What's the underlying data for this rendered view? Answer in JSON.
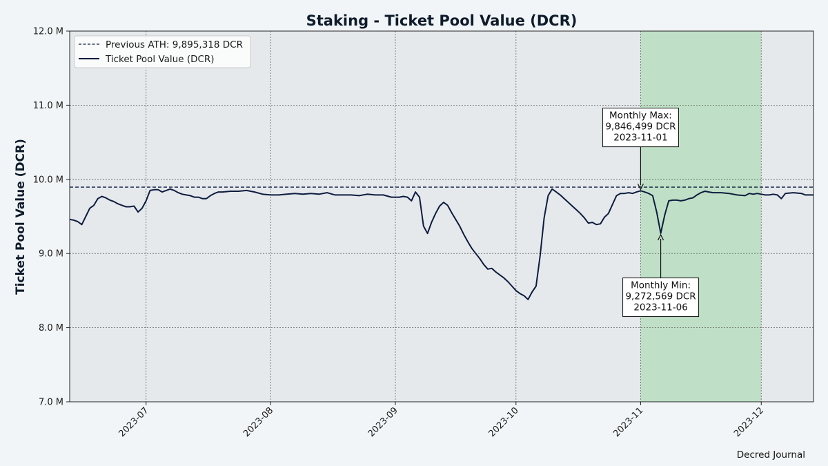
{
  "chart_data": {
    "type": "line",
    "title": "Staking - Ticket Pool Value (DCR)",
    "xlabel": "",
    "ylabel": "Ticket Pool Value (DCR)",
    "xlim": [
      "2023-06-12",
      "2023-12-14"
    ],
    "ylim": [
      7000000,
      12000000
    ],
    "y_ticks": [
      7000000,
      8000000,
      9000000,
      10000000,
      11000000,
      12000000
    ],
    "y_tick_labels": [
      "7.0 M",
      "8.0 M",
      "9.0 M",
      "10.0 M",
      "11.0 M",
      "12.0 M"
    ],
    "x_ticks": [
      "2023-07-01",
      "2023-08-01",
      "2023-09-01",
      "2023-10-01",
      "2023-11-01",
      "2023-12-01"
    ],
    "x_tick_labels": [
      "2023-07",
      "2023-08",
      "2023-09",
      "2023-10",
      "2023-11",
      "2023-12"
    ],
    "grid": true,
    "legend_position": "top-left",
    "highlight_range": [
      "2023-11-01",
      "2023-12-01"
    ],
    "reference_line": {
      "label": "Previous ATH: 9,895,318 DCR",
      "value": 9895318
    },
    "series": [
      {
        "name": "Ticket Pool Value (DCR)",
        "color": "#0d1b3e",
        "points": [
          [
            "2023-06-12",
            9460000
          ],
          [
            "2023-06-13",
            9450000
          ],
          [
            "2023-06-14",
            9430000
          ],
          [
            "2023-06-15",
            9390000
          ],
          [
            "2023-06-16",
            9500000
          ],
          [
            "2023-06-17",
            9610000
          ],
          [
            "2023-06-18",
            9650000
          ],
          [
            "2023-06-19",
            9740000
          ],
          [
            "2023-06-20",
            9770000
          ],
          [
            "2023-06-21",
            9750000
          ],
          [
            "2023-06-22",
            9720000
          ],
          [
            "2023-06-23",
            9700000
          ],
          [
            "2023-06-24",
            9670000
          ],
          [
            "2023-06-25",
            9650000
          ],
          [
            "2023-06-26",
            9630000
          ],
          [
            "2023-06-27",
            9630000
          ],
          [
            "2023-06-28",
            9640000
          ],
          [
            "2023-06-29",
            9560000
          ],
          [
            "2023-06-30",
            9610000
          ],
          [
            "2023-07-01",
            9710000
          ],
          [
            "2023-07-02",
            9850000
          ],
          [
            "2023-07-03",
            9860000
          ],
          [
            "2023-07-04",
            9860000
          ],
          [
            "2023-07-05",
            9830000
          ],
          [
            "2023-07-06",
            9850000
          ],
          [
            "2023-07-07",
            9870000
          ],
          [
            "2023-07-08",
            9850000
          ],
          [
            "2023-07-09",
            9820000
          ],
          [
            "2023-07-10",
            9800000
          ],
          [
            "2023-07-11",
            9790000
          ],
          [
            "2023-07-12",
            9780000
          ],
          [
            "2023-07-13",
            9760000
          ],
          [
            "2023-07-14",
            9760000
          ],
          [
            "2023-07-15",
            9740000
          ],
          [
            "2023-07-16",
            9740000
          ],
          [
            "2023-07-17",
            9780000
          ],
          [
            "2023-07-18",
            9810000
          ],
          [
            "2023-07-19",
            9830000
          ],
          [
            "2023-07-20",
            9830000
          ],
          [
            "2023-07-22",
            9840000
          ],
          [
            "2023-07-24",
            9840000
          ],
          [
            "2023-07-26",
            9850000
          ],
          [
            "2023-07-28",
            9830000
          ],
          [
            "2023-07-30",
            9800000
          ],
          [
            "2023-08-01",
            9790000
          ],
          [
            "2023-08-03",
            9790000
          ],
          [
            "2023-08-05",
            9800000
          ],
          [
            "2023-08-07",
            9810000
          ],
          [
            "2023-08-09",
            9800000
          ],
          [
            "2023-08-11",
            9810000
          ],
          [
            "2023-08-13",
            9800000
          ],
          [
            "2023-08-15",
            9820000
          ],
          [
            "2023-08-17",
            9790000
          ],
          [
            "2023-08-19",
            9790000
          ],
          [
            "2023-08-21",
            9790000
          ],
          [
            "2023-08-23",
            9780000
          ],
          [
            "2023-08-25",
            9800000
          ],
          [
            "2023-08-27",
            9790000
          ],
          [
            "2023-08-29",
            9790000
          ],
          [
            "2023-08-31",
            9760000
          ],
          [
            "2023-09-02",
            9760000
          ],
          [
            "2023-09-03",
            9770000
          ],
          [
            "2023-09-04",
            9760000
          ],
          [
            "2023-09-05",
            9710000
          ],
          [
            "2023-09-06",
            9830000
          ],
          [
            "2023-09-07",
            9760000
          ],
          [
            "2023-09-08",
            9370000
          ],
          [
            "2023-09-09",
            9270000
          ],
          [
            "2023-09-10",
            9420000
          ],
          [
            "2023-09-11",
            9540000
          ],
          [
            "2023-09-12",
            9640000
          ],
          [
            "2023-09-13",
            9690000
          ],
          [
            "2023-09-14",
            9650000
          ],
          [
            "2023-09-15",
            9550000
          ],
          [
            "2023-09-16",
            9460000
          ],
          [
            "2023-09-17",
            9370000
          ],
          [
            "2023-09-18",
            9260000
          ],
          [
            "2023-09-19",
            9160000
          ],
          [
            "2023-09-20",
            9070000
          ],
          [
            "2023-09-21",
            9000000
          ],
          [
            "2023-09-22",
            8930000
          ],
          [
            "2023-09-23",
            8850000
          ],
          [
            "2023-09-24",
            8790000
          ],
          [
            "2023-09-25",
            8800000
          ],
          [
            "2023-09-26",
            8750000
          ],
          [
            "2023-09-27",
            8710000
          ],
          [
            "2023-09-28",
            8670000
          ],
          [
            "2023-09-29",
            8620000
          ],
          [
            "2023-09-30",
            8560000
          ],
          [
            "2023-10-01",
            8500000
          ],
          [
            "2023-10-02",
            8460000
          ],
          [
            "2023-10-03",
            8430000
          ],
          [
            "2023-10-04",
            8380000
          ],
          [
            "2023-10-05",
            8480000
          ],
          [
            "2023-10-06",
            8560000
          ],
          [
            "2023-10-07",
            8970000
          ],
          [
            "2023-10-08",
            9480000
          ],
          [
            "2023-10-09",
            9780000
          ],
          [
            "2023-10-10",
            9870000
          ],
          [
            "2023-10-11",
            9830000
          ],
          [
            "2023-10-12",
            9790000
          ],
          [
            "2023-10-13",
            9740000
          ],
          [
            "2023-10-14",
            9690000
          ],
          [
            "2023-10-15",
            9640000
          ],
          [
            "2023-10-16",
            9590000
          ],
          [
            "2023-10-17",
            9540000
          ],
          [
            "2023-10-18",
            9480000
          ],
          [
            "2023-10-19",
            9410000
          ],
          [
            "2023-10-20",
            9420000
          ],
          [
            "2023-10-21",
            9390000
          ],
          [
            "2023-10-22",
            9400000
          ],
          [
            "2023-10-23",
            9490000
          ],
          [
            "2023-10-24",
            9540000
          ],
          [
            "2023-10-25",
            9660000
          ],
          [
            "2023-10-26",
            9780000
          ],
          [
            "2023-10-27",
            9810000
          ],
          [
            "2023-10-28",
            9810000
          ],
          [
            "2023-10-29",
            9820000
          ],
          [
            "2023-10-30",
            9810000
          ],
          [
            "2023-10-31",
            9830000
          ],
          [
            "2023-11-01",
            9846499
          ],
          [
            "2023-11-02",
            9830000
          ],
          [
            "2023-11-03",
            9810000
          ],
          [
            "2023-11-04",
            9780000
          ],
          [
            "2023-11-05",
            9560000
          ],
          [
            "2023-11-06",
            9272569
          ],
          [
            "2023-11-07",
            9520000
          ],
          [
            "2023-11-08",
            9710000
          ],
          [
            "2023-11-09",
            9720000
          ],
          [
            "2023-11-10",
            9720000
          ],
          [
            "2023-11-11",
            9710000
          ],
          [
            "2023-11-12",
            9720000
          ],
          [
            "2023-11-13",
            9740000
          ],
          [
            "2023-11-14",
            9750000
          ],
          [
            "2023-11-15",
            9790000
          ],
          [
            "2023-11-16",
            9820000
          ],
          [
            "2023-11-17",
            9840000
          ],
          [
            "2023-11-18",
            9830000
          ],
          [
            "2023-11-19",
            9820000
          ],
          [
            "2023-11-21",
            9820000
          ],
          [
            "2023-11-23",
            9810000
          ],
          [
            "2023-11-25",
            9790000
          ],
          [
            "2023-11-27",
            9780000
          ],
          [
            "2023-11-28",
            9810000
          ],
          [
            "2023-11-29",
            9800000
          ],
          [
            "2023-11-30",
            9810000
          ],
          [
            "2023-12-01",
            9800000
          ],
          [
            "2023-12-02",
            9790000
          ],
          [
            "2023-12-03",
            9790000
          ],
          [
            "2023-12-04",
            9800000
          ],
          [
            "2023-12-05",
            9790000
          ],
          [
            "2023-12-06",
            9740000
          ],
          [
            "2023-12-07",
            9810000
          ],
          [
            "2023-12-09",
            9820000
          ],
          [
            "2023-12-11",
            9810000
          ],
          [
            "2023-12-12",
            9790000
          ],
          [
            "2023-12-14",
            9790000
          ]
        ]
      }
    ],
    "annotations": [
      {
        "kind": "max",
        "lines": [
          "Monthly Max:",
          "9,846,499 DCR",
          "2023-11-01"
        ],
        "target_date": "2023-11-01",
        "target_value": 9846499,
        "label_anchor_date": "2023-11-01",
        "label_anchor_value": 10700000
      },
      {
        "kind": "min",
        "lines": [
          "Monthly Min:",
          "9,272,569 DCR",
          "2023-11-06"
        ],
        "target_date": "2023-11-06",
        "target_value": 9272569,
        "label_anchor_date": "2023-11-06",
        "label_anchor_value": 8410000
      }
    ]
  },
  "colors": {
    "plot_background": "#e5e9ec",
    "page_background": "#f2f5f7",
    "highlight": "#bfe0c6",
    "line": "#0d1b3e",
    "reference_line": "#0d1b3e"
  },
  "credit": "Decred Journal"
}
